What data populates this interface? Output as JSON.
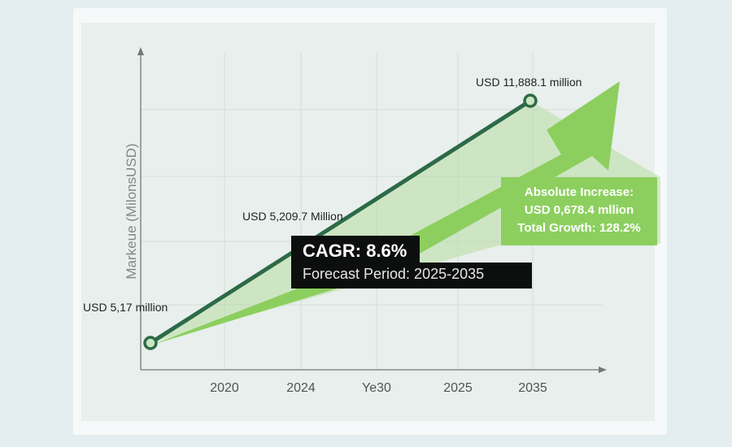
{
  "chart_data": {
    "type": "line",
    "title": "",
    "ylabel": "Markeue (MilonsUSD)",
    "xlabel": "",
    "categories": [
      "2020",
      "2024",
      "Ye30",
      "2025",
      "2035"
    ],
    "points": [
      {
        "label": "USD 5,17 million",
        "value": 5.17
      },
      {
        "label": "USD 11,888.1 million",
        "value": 11888.1,
        "x": "2035"
      }
    ],
    "mid_label": "USD 5,209.7 Million",
    "grid": true,
    "colors": {
      "line": "#2d6a47",
      "arrow": "#8ccf5e",
      "fill": "#b8dca4"
    }
  },
  "cagr": {
    "title": "CAGR: 8.6%",
    "period": "Forecast Period: 2025-2035"
  },
  "increase": {
    "line1": "Absolute Increase:",
    "line2": "USD 0,678.4 mllion",
    "line3": "Total Growth: 128.2%"
  },
  "icons": {
    "arrow": "trend-up-arrow-icon"
  }
}
